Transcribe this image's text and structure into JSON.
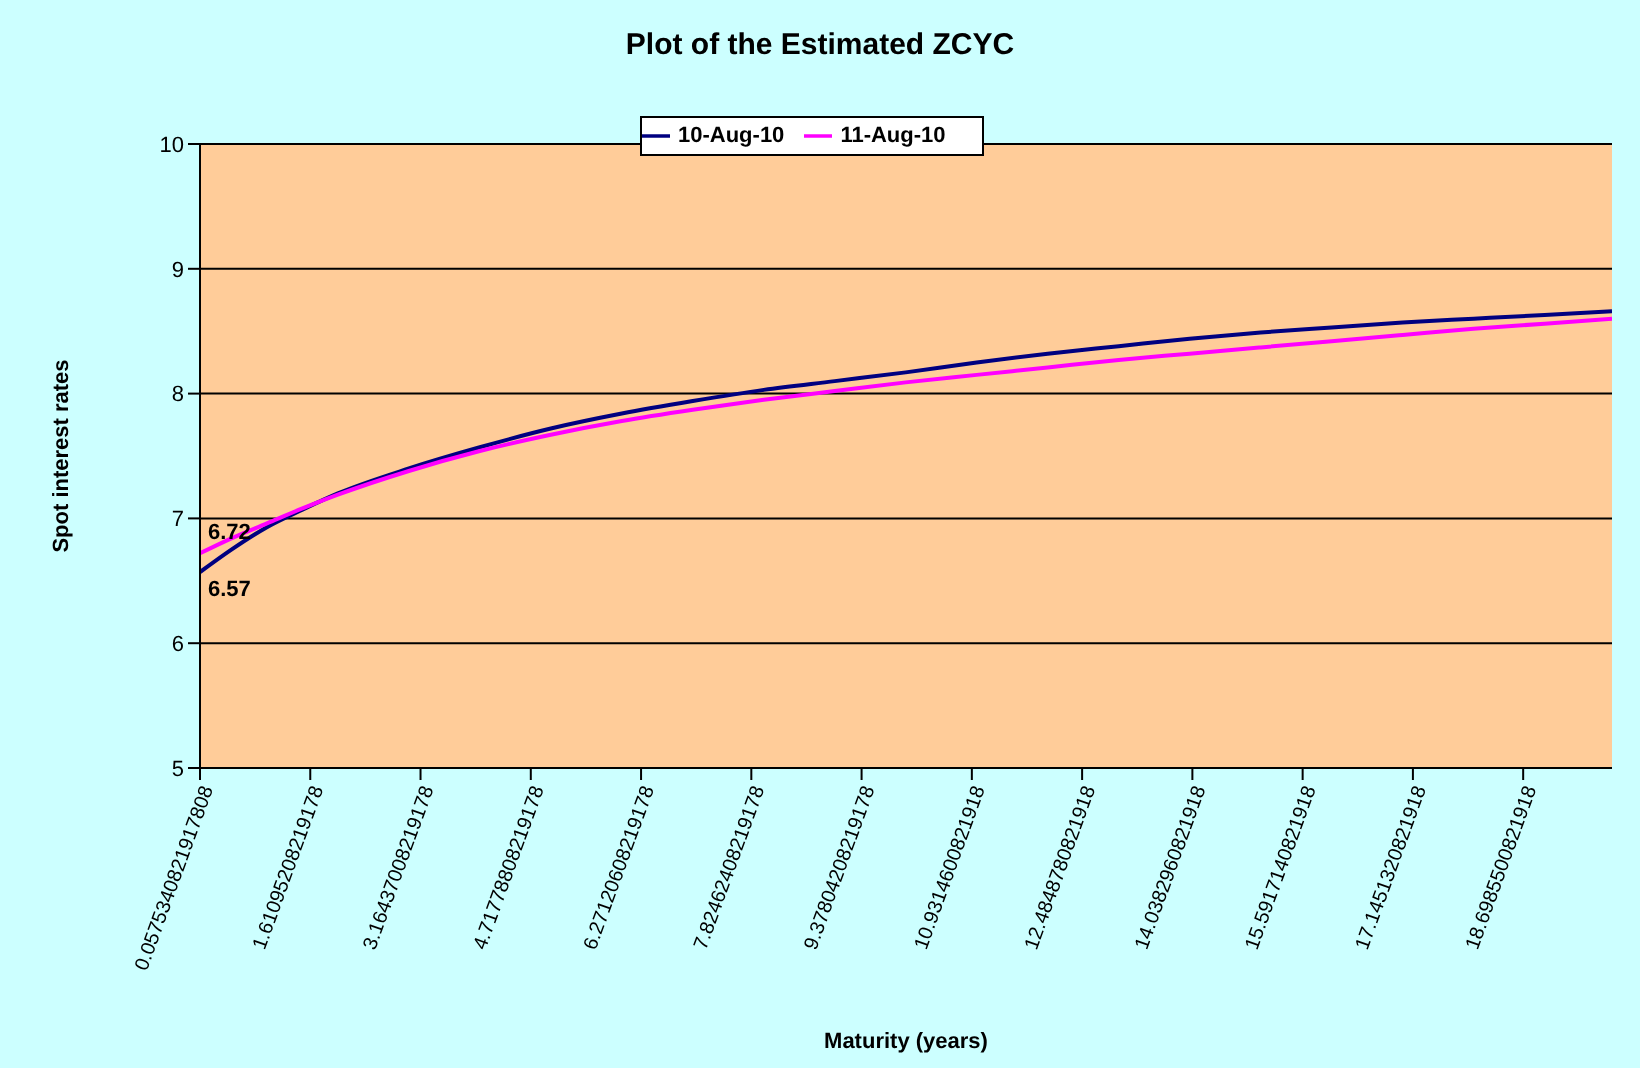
{
  "chart_data": {
    "type": "line",
    "title": "Plot of the Estimated ZCYC",
    "xlabel": "Maturity (years)",
    "ylabel": "Spot interest rates",
    "x": [
      0.0575340821917808,
      0.5,
      1,
      1.5,
      2,
      3,
      4,
      5,
      6,
      7,
      8,
      9,
      10,
      11,
      12,
      13,
      14,
      15,
      16,
      17,
      18,
      19,
      19.95
    ],
    "series": [
      {
        "name": "10-Aug-10",
        "color": "#000080",
        "values": [
          6.57,
          6.75,
          6.93,
          7.07,
          7.2,
          7.4,
          7.57,
          7.72,
          7.84,
          7.94,
          8.03,
          8.1,
          8.17,
          8.25,
          8.32,
          8.38,
          8.44,
          8.49,
          8.53,
          8.57,
          8.6,
          8.63,
          8.66
        ],
        "value_labels": [
          "6.57",
          null,
          null,
          null,
          null,
          null,
          null,
          null,
          null,
          null,
          null,
          null,
          null,
          null,
          null,
          null,
          null,
          null,
          null,
          null,
          null,
          null,
          null
        ]
      },
      {
        "name": "11-Aug-10",
        "color": "#ff00ff",
        "values": [
          6.72,
          6.84,
          6.96,
          7.08,
          7.19,
          7.38,
          7.54,
          7.67,
          7.78,
          7.87,
          7.95,
          8.02,
          8.09,
          8.15,
          8.21,
          8.27,
          8.32,
          8.37,
          8.42,
          8.47,
          8.52,
          8.56,
          8.6
        ],
        "value_labels": [
          "6.72",
          null,
          null,
          null,
          null,
          null,
          null,
          null,
          null,
          null,
          null,
          null,
          null,
          null,
          null,
          null,
          null,
          null,
          null,
          null,
          null,
          null,
          null
        ]
      }
    ],
    "xlim": [
      0.0575340821917808,
      19.95
    ],
    "xticks": [
      0.0575340821917808,
      1.61095208219178,
      3.16437008219178,
      4.71778808219178,
      6.27120608219178,
      7.82462408219178,
      9.37804208219178,
      10.9314600821918,
      12.4848780821918,
      14.0382960821918,
      15.5917140821918,
      17.1451320821918,
      18.6985500821918
    ],
    "ylim": [
      5,
      10
    ],
    "yticks": [
      5,
      6,
      7,
      8,
      9,
      10
    ],
    "grid": "y",
    "legend": "top",
    "marker": "none",
    "line_style": "solid"
  }
}
